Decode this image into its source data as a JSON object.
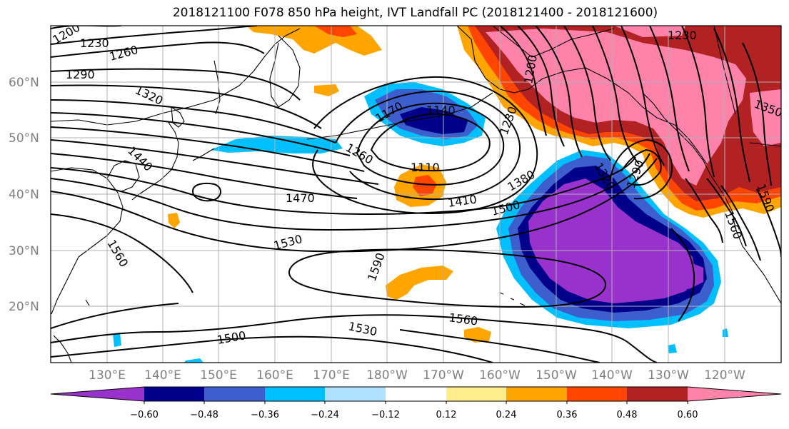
{
  "title": "2018121100 F078 850 hPa height, IVT Landfall PC (2018121400 - 2018121600)",
  "longitude_labels": [
    "130°E",
    "140°E",
    "150°E",
    "160°E",
    "170°E",
    "180°W",
    "170°W",
    "160°W",
    "150°W",
    "140°W",
    "130°W",
    "120°W"
  ],
  "latitude_labels": [
    "60°N",
    "50°N",
    "40°N",
    "30°N",
    "20°N"
  ],
  "contour_labels": [
    "1200",
    "1230",
    "1260",
    "1290",
    "1320",
    "1440",
    "1560",
    "1170",
    "1140",
    "1260",
    "1110",
    "1470",
    "1410",
    "1380",
    "1500",
    "1530",
    "1590",
    "1560",
    "1530",
    "1500",
    "1230",
    "1200",
    "1230",
    "1320",
    "1290",
    "1350",
    "1560",
    "1590"
  ],
  "colorbar": {
    "tick_labels": [
      "−0.60",
      "−0.48",
      "−0.36",
      "−0.24",
      "−0.12",
      "0.12",
      "0.24",
      "0.36",
      "0.48",
      "0.60"
    ],
    "colors": [
      "#9932cc",
      "#00008b",
      "#3c5fcd",
      "#00bfff",
      "#b0e0ff",
      "#ffffff",
      "#ffec8b",
      "#ffa500",
      "#ff4500",
      "#b22222",
      "#ff82ab"
    ]
  },
  "colors": {
    "land_outline": "#000000",
    "grid": "#b0b0b0",
    "contour": "#000000"
  }
}
